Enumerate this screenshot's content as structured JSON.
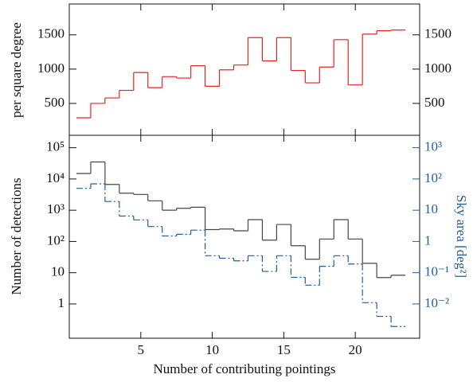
{
  "chart_data": [
    {
      "type": "step",
      "ylabel": "per square degree",
      "x": [
        1,
        2,
        3,
        4,
        5,
        6,
        7,
        8,
        9,
        10,
        11,
        12,
        13,
        14,
        15,
        16,
        17,
        18,
        19,
        20,
        21,
        22,
        23
      ],
      "values": [
        290,
        500,
        580,
        690,
        950,
        730,
        890,
        870,
        1050,
        750,
        990,
        1060,
        1460,
        1120,
        1460,
        980,
        800,
        1030,
        1430,
        770,
        1510,
        1560,
        1570
      ],
      "color": "#e8221f",
      "xlim": [
        0,
        24.5
      ],
      "xticks": [
        5,
        10,
        15,
        20
      ],
      "ylim": [
        35,
        1950
      ],
      "yticks": [
        500,
        1000,
        1500
      ]
    },
    {
      "type": "step",
      "xlabel": "Number of contributing pointings",
      "ylabel": "Number of detections",
      "y2label": "Sky area [deg²]",
      "x": [
        1,
        2,
        3,
        4,
        5,
        6,
        7,
        8,
        9,
        10,
        11,
        12,
        13,
        14,
        15,
        16,
        17,
        18,
        19,
        20,
        21,
        22,
        23
      ],
      "series": [
        {
          "color": "#444444",
          "linestyle": "solid",
          "values": [
            15000,
            35000,
            6700,
            3500,
            3200,
            2000,
            1000,
            1150,
            1250,
            240,
            250,
            220,
            500,
            110,
            350,
            73,
            27,
            120,
            500,
            120,
            20,
            7,
            8.3
          ]
        },
        {
          "color": "#1f5f95",
          "linestyle": "dash-dot",
          "axis": "y2",
          "values": [
            50,
            70,
            19,
            6.5,
            4.9,
            3,
            1.5,
            1.7,
            2.3,
            0.35,
            0.29,
            0.24,
            0.35,
            0.11,
            0.35,
            0.071,
            0.04,
            0.16,
            0.35,
            0.19,
            0.011,
            0.004,
            0.0019
          ]
        }
      ],
      "log_scale": true,
      "xlim": [
        0,
        24.5
      ],
      "xticks": [
        5,
        10,
        15,
        20
      ],
      "ylim": [
        0.08,
        250000
      ],
      "yticks": [
        {
          "value": 1,
          "label": "1"
        },
        {
          "value": 10,
          "label": "10"
        },
        {
          "value": 100,
          "label": "10²"
        },
        {
          "value": 1000,
          "label": "10³"
        },
        {
          "value": 10000,
          "label": "10⁴"
        },
        {
          "value": 100000,
          "label": "10⁵"
        }
      ],
      "y2lim": [
        0.0008,
        2500
      ],
      "y2ticks": [
        {
          "value": 0.01,
          "label": "10⁻²"
        },
        {
          "value": 0.1,
          "label": "10⁻¹"
        },
        {
          "value": 1,
          "label": "1"
        },
        {
          "value": 10,
          "label": "10"
        },
        {
          "value": 100,
          "label": "10²"
        },
        {
          "value": 1000,
          "label": "10³"
        }
      ],
      "y2color": "#1f5f95"
    }
  ]
}
